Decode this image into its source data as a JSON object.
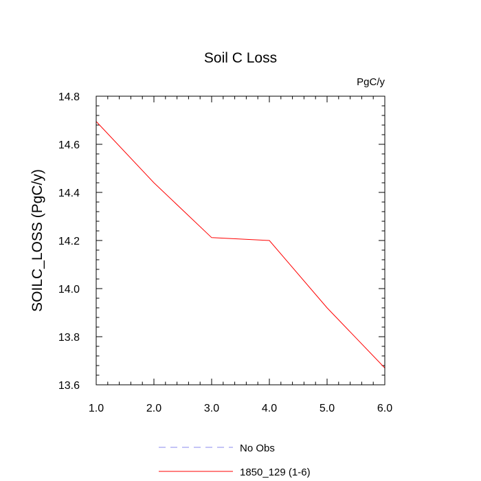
{
  "chart_data": {
    "type": "line",
    "title": "Soil C Loss",
    "units_label": "PgC/y",
    "xlabel": "",
    "ylabel": "SOILC_LOSS  (PgC/y)",
    "xlim": [
      1.0,
      6.0
    ],
    "ylim": [
      13.6,
      14.8
    ],
    "x_ticks": [
      1.0,
      2.0,
      3.0,
      4.0,
      5.0,
      6.0
    ],
    "x_tick_labels": [
      "1.0",
      "2.0",
      "3.0",
      "4.0",
      "5.0",
      "6.0"
    ],
    "y_ticks": [
      13.6,
      13.8,
      14.0,
      14.2,
      14.4,
      14.6,
      14.8
    ],
    "y_tick_labels": [
      "13.6",
      "13.8",
      "14.0",
      "14.2",
      "14.4",
      "14.6",
      "14.8"
    ],
    "grid": false,
    "legend_position": "bottom-center",
    "series": [
      {
        "name": "1850_129 (1-6)",
        "color": "#ff0000",
        "style": "solid",
        "x": [
          1.0,
          2.0,
          3.0,
          4.0,
          5.0,
          6.0
        ],
        "y": [
          14.695,
          14.44,
          14.212,
          14.2,
          13.92,
          13.67
        ]
      }
    ],
    "legend": [
      {
        "label": "No Obs",
        "color": "#8888ee",
        "style": "dashed"
      },
      {
        "label": "1850_129 (1-6)",
        "color": "#ff0000",
        "style": "solid"
      }
    ]
  }
}
